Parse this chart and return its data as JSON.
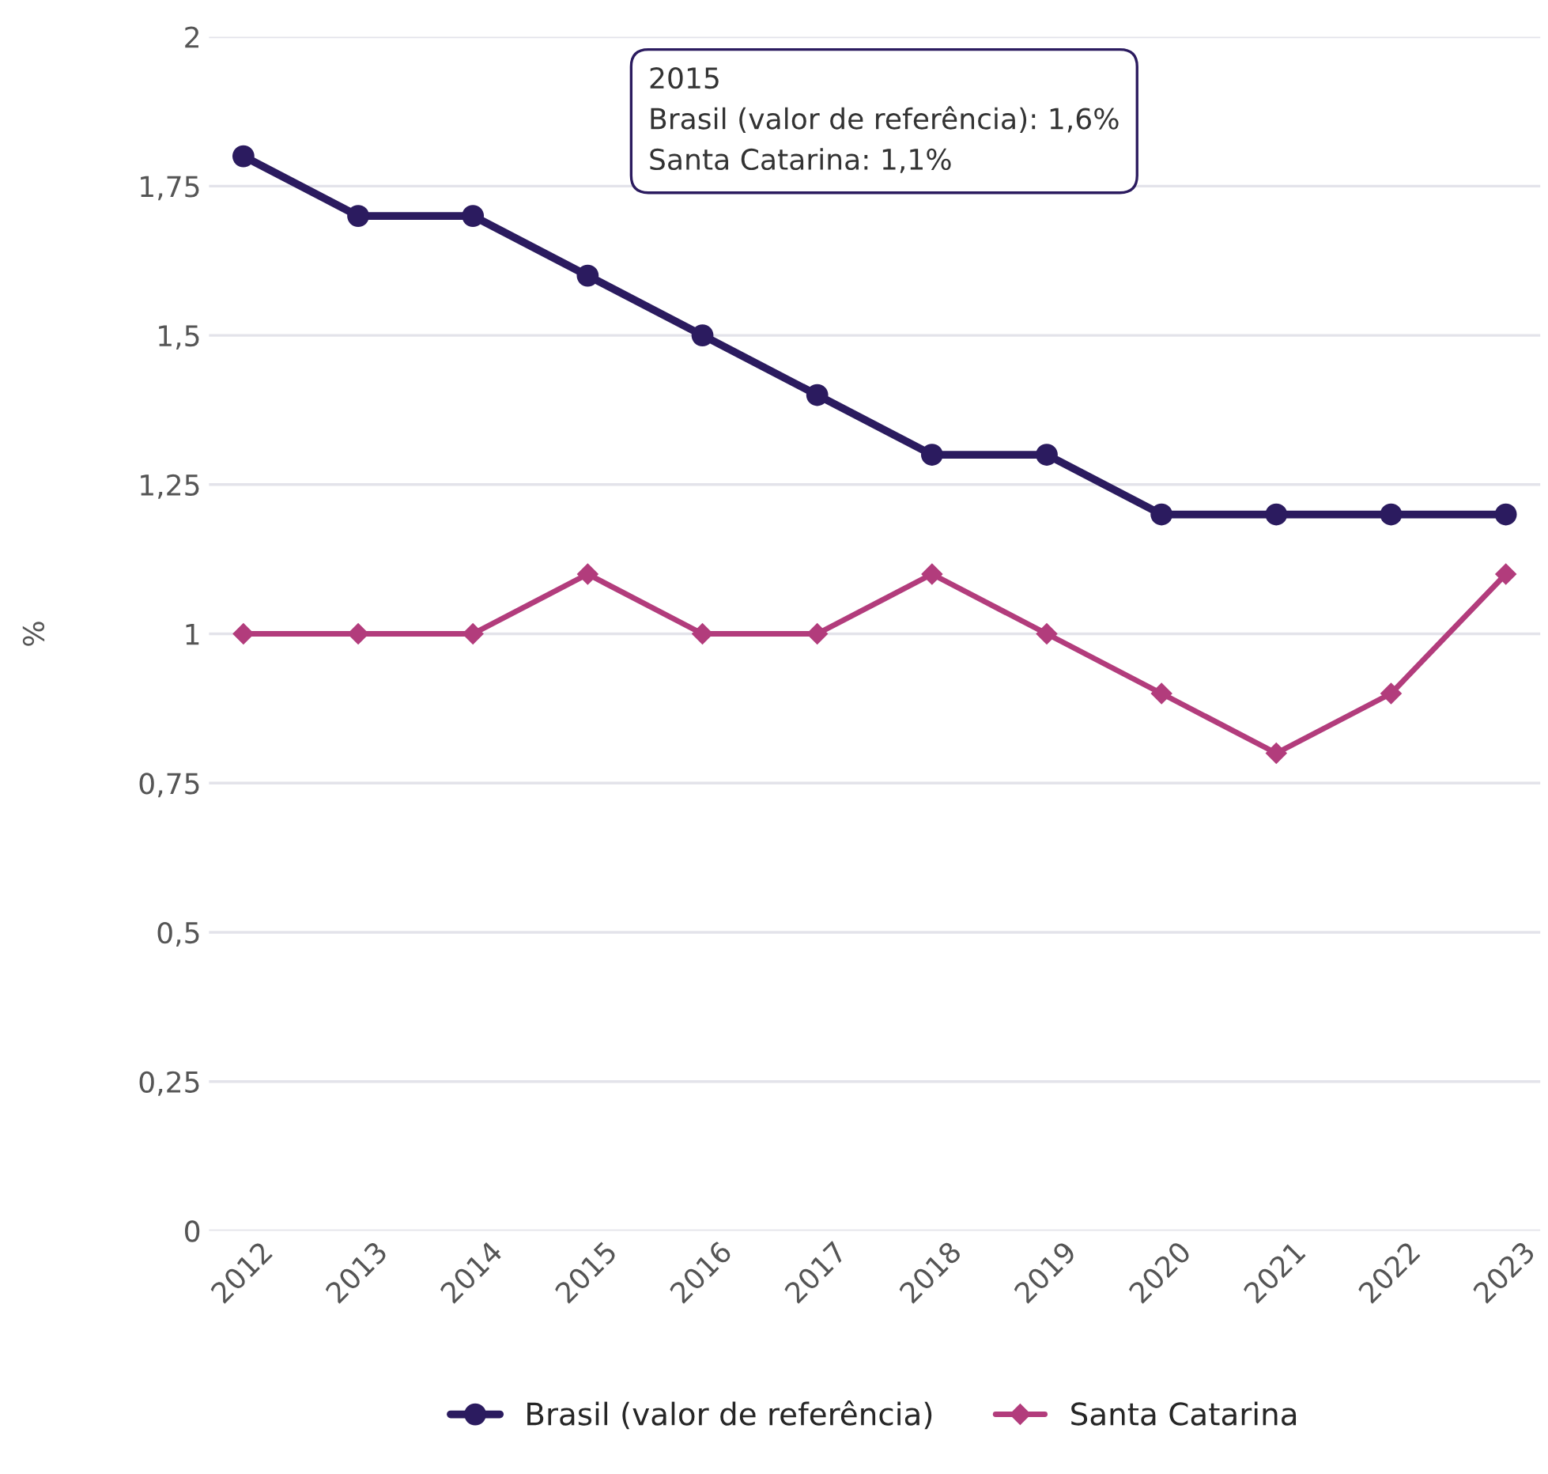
{
  "chart_data": {
    "type": "line",
    "ylabel": "%",
    "categories": [
      "2012",
      "2013",
      "2014",
      "2015",
      "2016",
      "2017",
      "2018",
      "2019",
      "2020",
      "2021",
      "2022",
      "2023"
    ],
    "series": [
      {
        "name": "Brasil (valor de referência)",
        "color": "#2b1b5f",
        "marker": "circle",
        "values": [
          1.8,
          1.7,
          1.7,
          1.6,
          1.5,
          1.4,
          1.3,
          1.3,
          1.2,
          1.2,
          1.2,
          1.2
        ]
      },
      {
        "name": "Santa Catarina",
        "color": "#b23c7c",
        "marker": "diamond",
        "values": [
          1.0,
          1.0,
          1.0,
          1.1,
          1.0,
          1.0,
          1.1,
          1.0,
          0.9,
          0.8,
          0.9,
          1.1
        ]
      }
    ],
    "ylim": [
      0,
      2
    ],
    "yticks": [
      0,
      {
        "value": 0.25,
        "label": "0,25"
      },
      {
        "value": 0.5,
        "label": "0,5"
      },
      {
        "value": 0.75,
        "label": "0,75"
      },
      1,
      {
        "value": 1.25,
        "label": "1,25"
      },
      {
        "value": 1.5,
        "label": "1,5"
      },
      {
        "value": 1.75,
        "label": "1,75"
      },
      2
    ],
    "grid": "y",
    "legend": "bottom",
    "line_style": "solid",
    "annotations": [
      "2015",
      "Brasil (valor de referência): 1,6%",
      "Santa Catarina: 1,1%"
    ]
  }
}
